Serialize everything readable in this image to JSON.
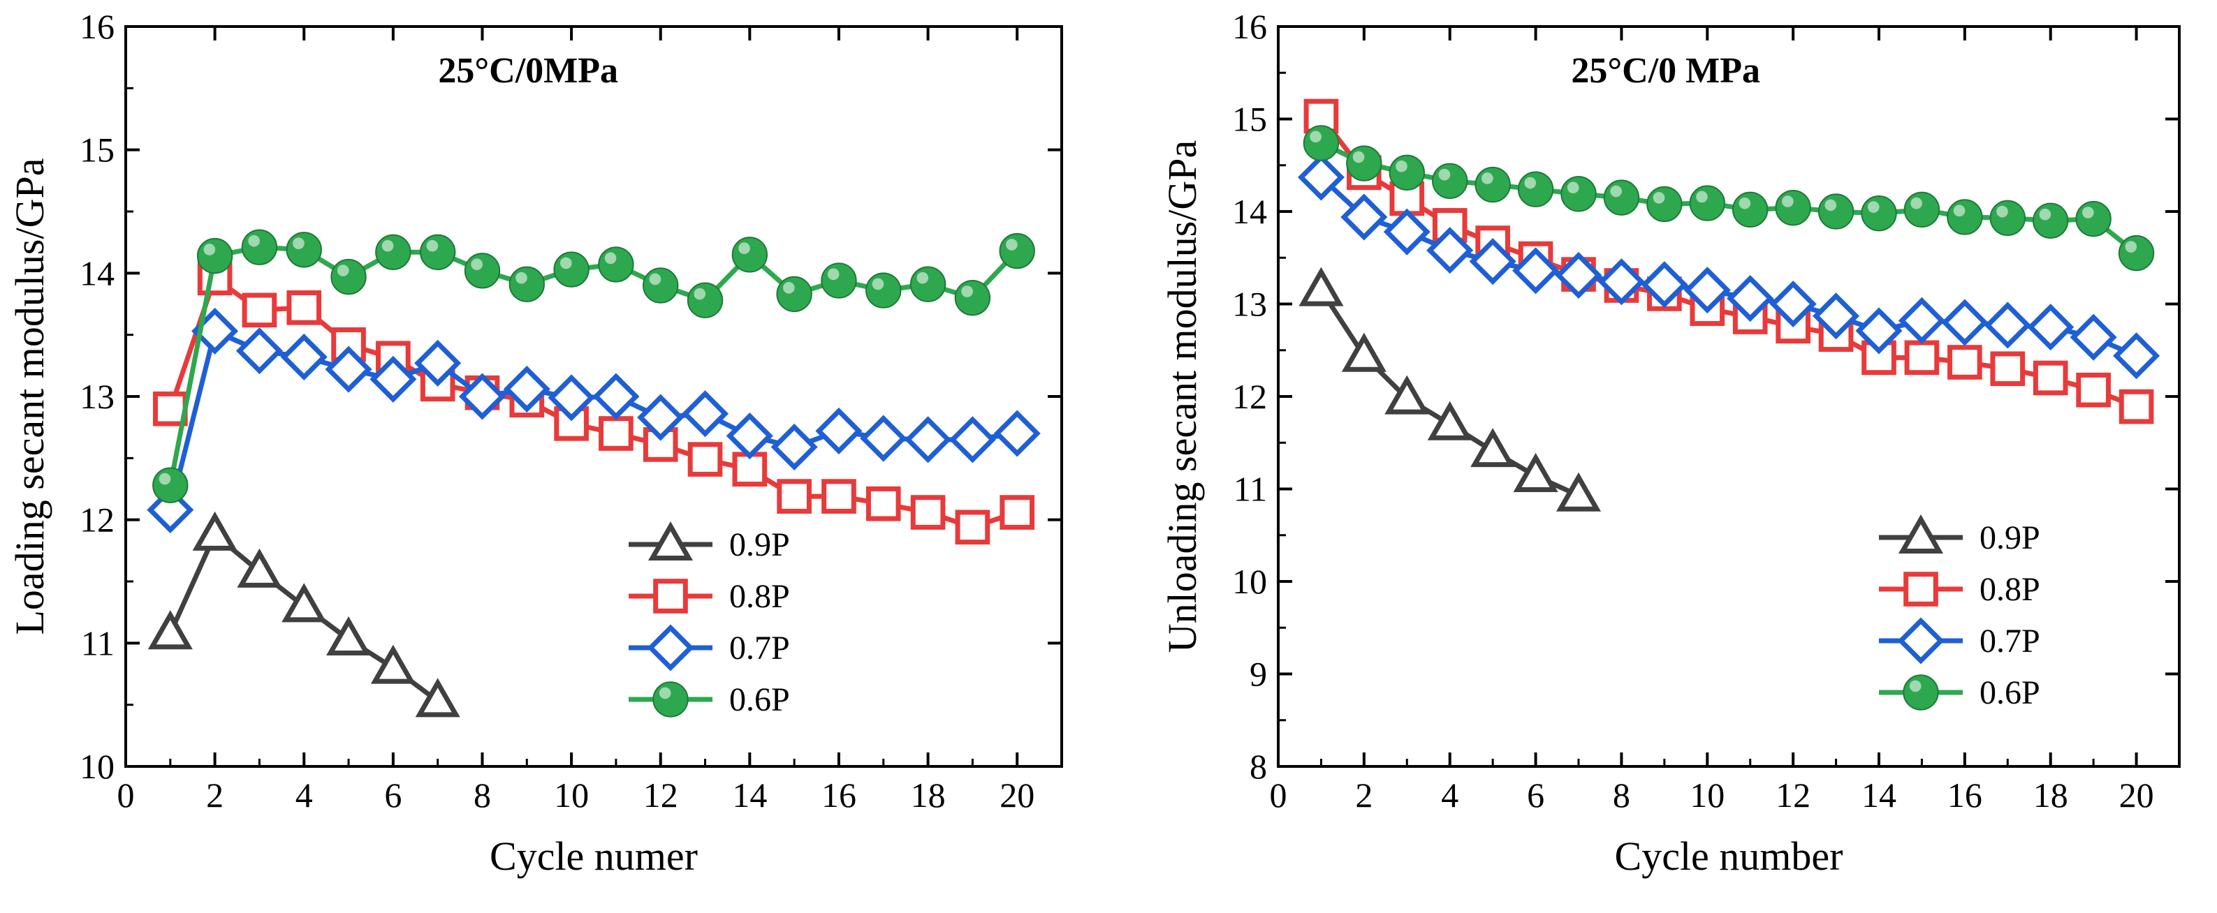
{
  "chart_data": [
    {
      "type": "line",
      "title": "25°C/0MPa",
      "xlabel": "Cycle numer",
      "ylabel": "Loading secant modulus/GPa",
      "xlim": [
        0,
        21
      ],
      "ylim": [
        10,
        16
      ],
      "xticks": [
        0,
        2,
        4,
        6,
        8,
        10,
        12,
        14,
        16,
        18,
        20
      ],
      "yticks": [
        10,
        11,
        12,
        13,
        14,
        15,
        16
      ],
      "grid": false,
      "legend_position": "lower-right",
      "series": [
        {
          "name": "0.9P",
          "color": "#404040",
          "marker": "triangle",
          "x": [
            1,
            2,
            3,
            4,
            5,
            6,
            7
          ],
          "y": [
            11.08,
            11.88,
            11.58,
            11.3,
            11.03,
            10.8,
            10.53
          ]
        },
        {
          "name": "0.8P",
          "color": "#e83a3a",
          "marker": "square",
          "x": [
            1,
            2,
            3,
            4,
            5,
            6,
            7,
            8,
            9,
            10,
            11,
            12,
            13,
            14,
            15,
            16,
            17,
            18,
            19,
            20
          ],
          "y": [
            12.9,
            13.96,
            13.7,
            13.72,
            13.42,
            13.31,
            13.1,
            13.03,
            12.97,
            12.78,
            12.7,
            12.61,
            12.49,
            12.41,
            12.19,
            12.19,
            12.13,
            12.06,
            11.94,
            12.06
          ]
        },
        {
          "name": "0.7P",
          "color": "#1f5fd6",
          "marker": "diamond",
          "x": [
            1,
            2,
            3,
            4,
            5,
            6,
            7,
            8,
            9,
            10,
            11,
            12,
            13,
            14,
            15,
            16,
            17,
            18,
            19,
            20
          ],
          "y": [
            12.08,
            13.53,
            13.37,
            13.32,
            13.22,
            13.14,
            13.27,
            13.0,
            13.06,
            12.99,
            13.0,
            12.83,
            12.86,
            12.68,
            12.59,
            12.72,
            12.66,
            12.65,
            12.65,
            12.7
          ]
        },
        {
          "name": "0.6P",
          "color": "#2ea84f",
          "marker": "circle",
          "x": [
            1,
            2,
            3,
            4,
            5,
            6,
            7,
            8,
            9,
            10,
            11,
            12,
            13,
            14,
            15,
            16,
            17,
            18,
            19,
            20
          ],
          "y": [
            12.28,
            14.14,
            14.21,
            14.19,
            13.97,
            14.17,
            14.17,
            14.02,
            13.91,
            14.03,
            14.07,
            13.9,
            13.78,
            14.15,
            13.83,
            13.94,
            13.86,
            13.91,
            13.8,
            14.18
          ]
        }
      ]
    },
    {
      "type": "line",
      "title": "25°C/0 MPa",
      "xlabel": "Cycle number",
      "ylabel": "Unloading secant modulus/GPa",
      "xlim": [
        0,
        21
      ],
      "ylim": [
        8,
        16
      ],
      "xticks": [
        0,
        2,
        4,
        6,
        8,
        10,
        12,
        14,
        16,
        18,
        20
      ],
      "yticks": [
        8,
        9,
        10,
        11,
        12,
        13,
        14,
        15,
        16
      ],
      "grid": false,
      "legend_position": "lower-right",
      "series": [
        {
          "name": "0.9P",
          "color": "#404040",
          "marker": "triangle",
          "x": [
            1,
            2,
            3,
            4,
            5,
            6,
            7
          ],
          "y": [
            13.15,
            12.44,
            11.98,
            11.7,
            11.41,
            11.14,
            10.93
          ]
        },
        {
          "name": "0.8P",
          "color": "#e83a3a",
          "marker": "square",
          "x": [
            1,
            2,
            3,
            4,
            5,
            6,
            7,
            8,
            9,
            10,
            11,
            12,
            13,
            14,
            15,
            16,
            17,
            18,
            19,
            20
          ],
          "y": [
            15.03,
            14.42,
            14.14,
            13.85,
            13.66,
            13.49,
            13.32,
            13.2,
            13.11,
            12.95,
            12.86,
            12.76,
            12.67,
            12.42,
            12.42,
            12.37,
            12.3,
            12.2,
            12.07,
            11.89
          ]
        },
        {
          "name": "0.7P",
          "color": "#1f5fd6",
          "marker": "diamond",
          "x": [
            1,
            2,
            3,
            4,
            5,
            6,
            7,
            8,
            9,
            10,
            11,
            12,
            13,
            14,
            15,
            16,
            17,
            18,
            19,
            20
          ],
          "y": [
            14.37,
            13.94,
            13.78,
            13.58,
            13.46,
            13.36,
            13.31,
            13.24,
            13.21,
            13.15,
            13.06,
            13.0,
            12.87,
            12.71,
            12.82,
            12.8,
            12.77,
            12.75,
            12.64,
            12.44
          ]
        },
        {
          "name": "0.6P",
          "color": "#2ea84f",
          "marker": "circle",
          "x": [
            1,
            2,
            3,
            4,
            5,
            6,
            7,
            8,
            9,
            10,
            11,
            12,
            13,
            14,
            15,
            16,
            17,
            18,
            19,
            20
          ],
          "y": [
            14.74,
            14.52,
            14.42,
            14.33,
            14.29,
            14.24,
            14.19,
            14.15,
            14.08,
            14.09,
            14.02,
            14.04,
            14.0,
            13.98,
            14.02,
            13.94,
            13.93,
            13.9,
            13.92,
            13.55
          ]
        }
      ]
    }
  ]
}
